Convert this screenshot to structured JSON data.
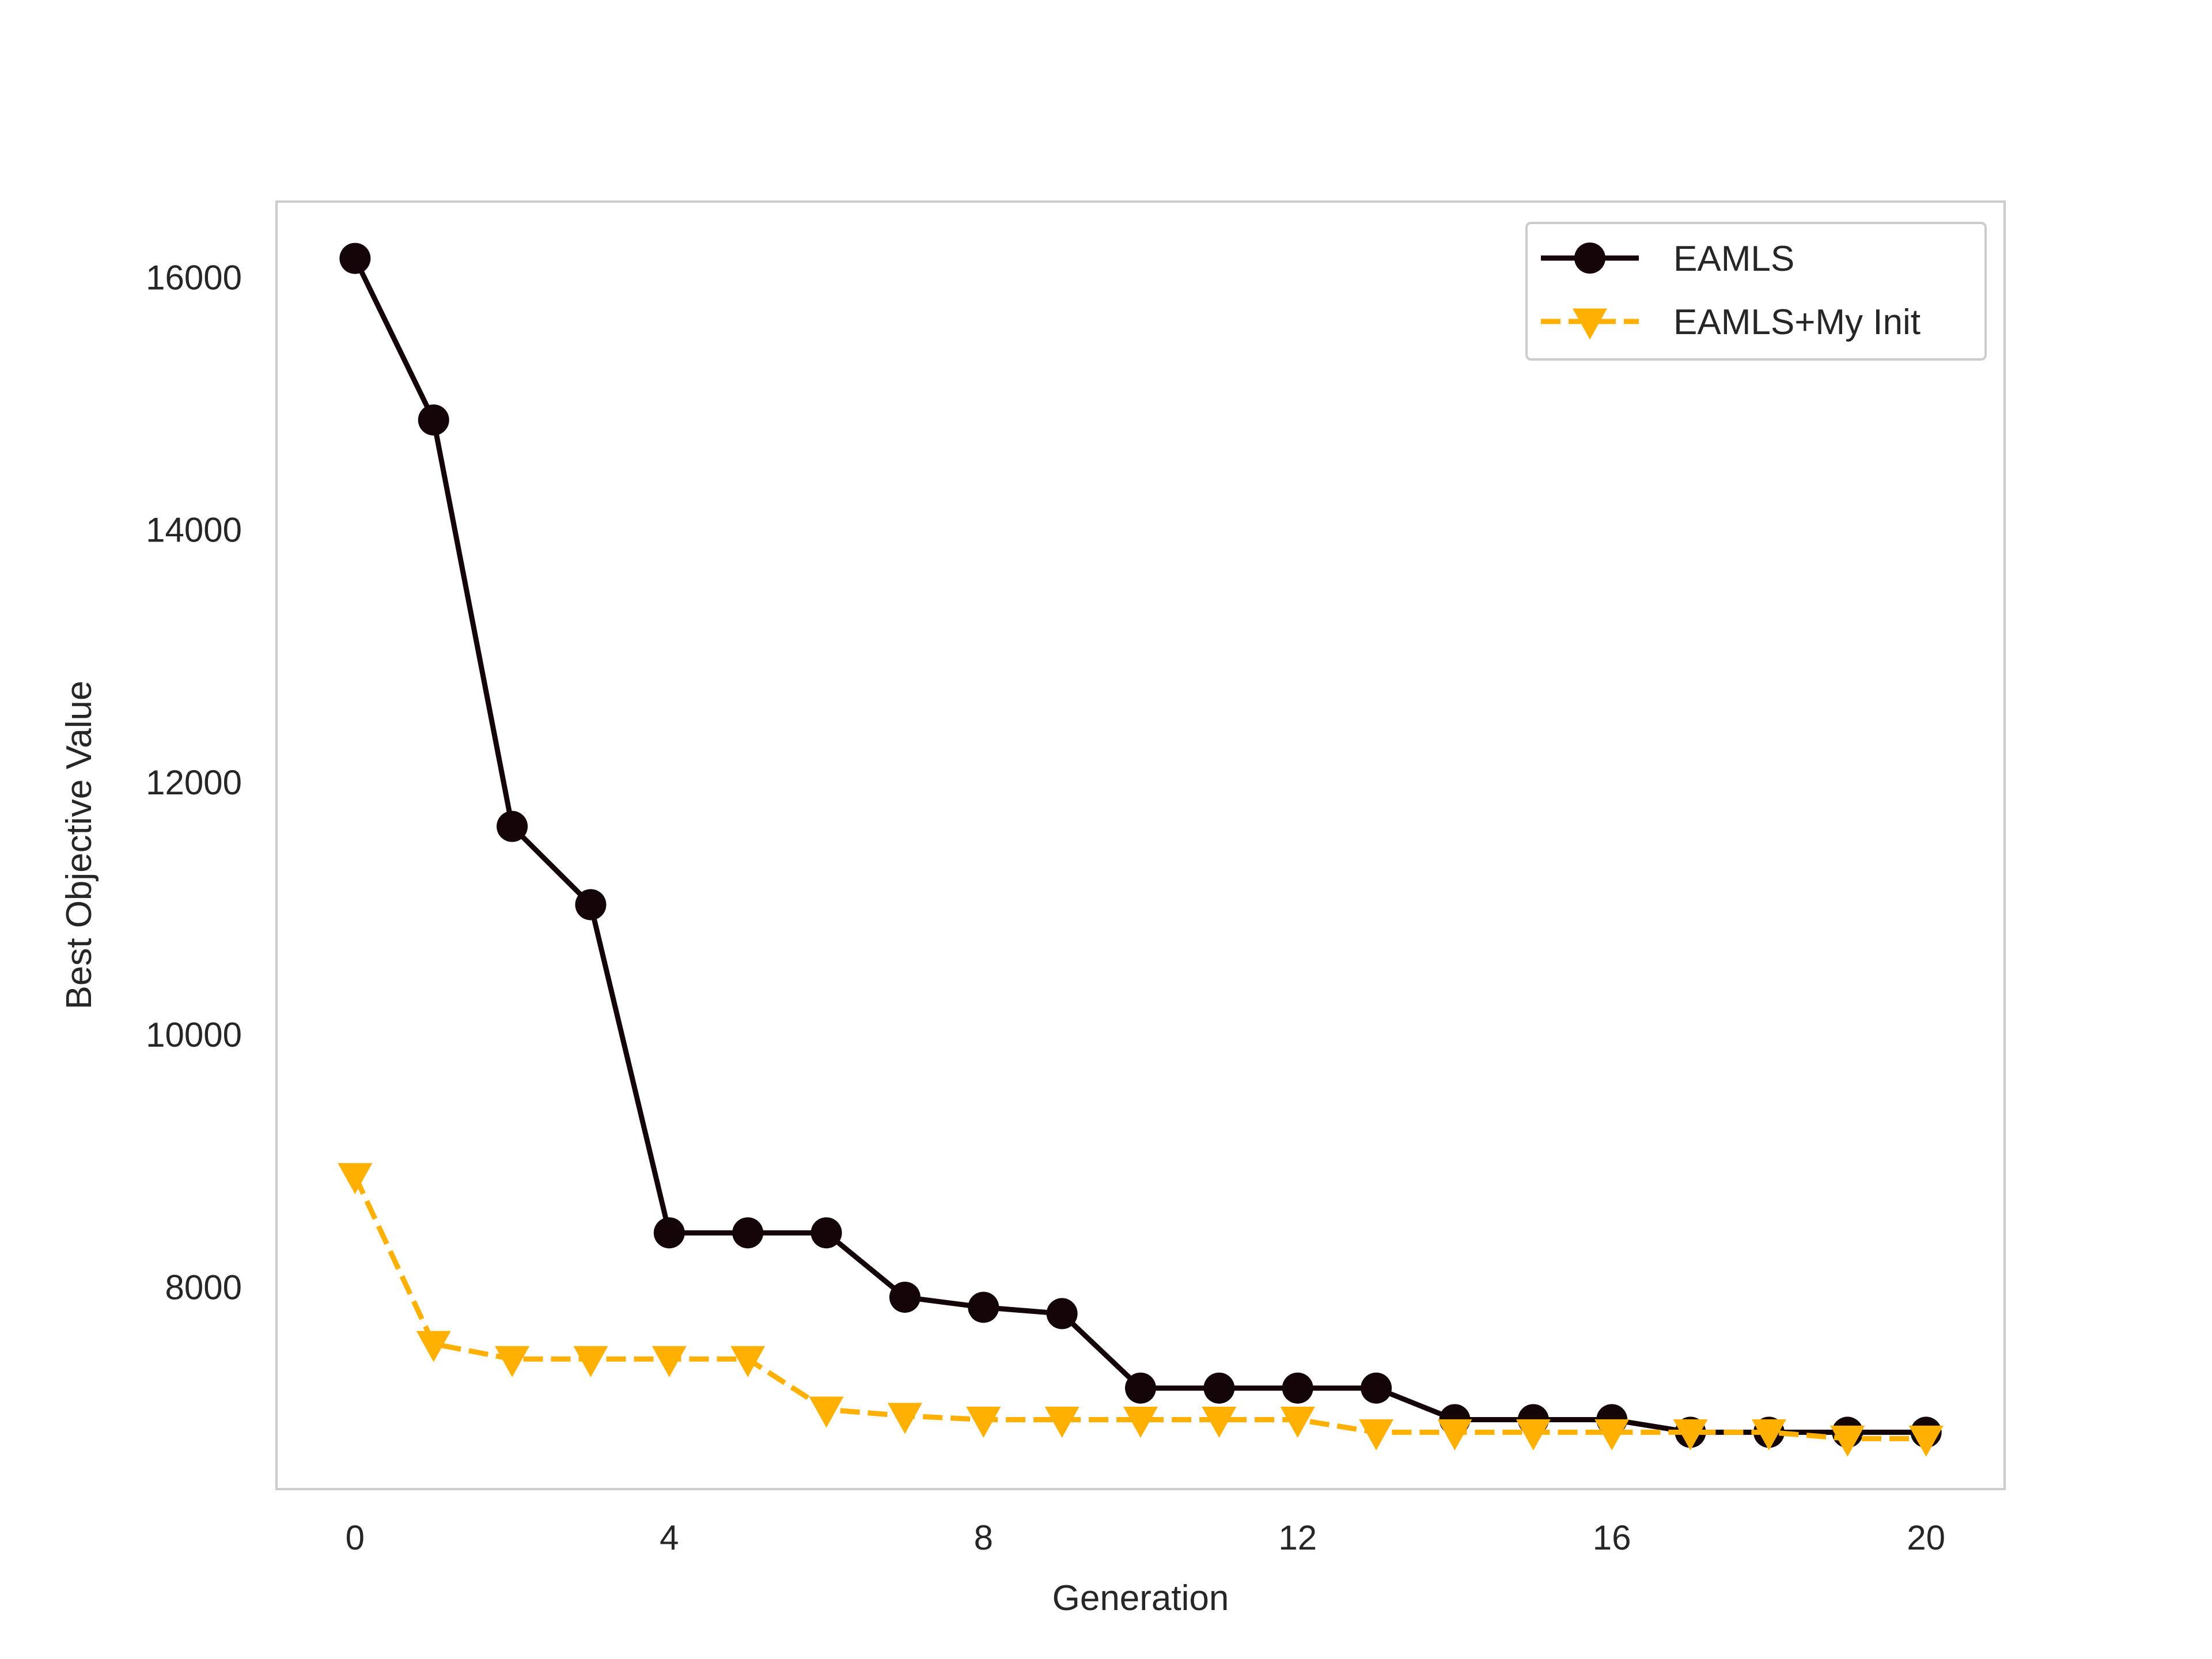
{
  "chart_data": {
    "type": "line",
    "title": "",
    "xlabel": "Generation",
    "ylabel": "Best Objective Value",
    "xlim": [
      -1,
      21
    ],
    "ylim": [
      6400,
      16600
    ],
    "x_ticks": [
      0,
      4,
      8,
      12,
      16,
      20
    ],
    "y_ticks": [
      8000,
      10000,
      12000,
      14000,
      16000
    ],
    "grid": false,
    "legend_position": "top-right",
    "x": [
      0,
      1,
      2,
      3,
      4,
      5,
      6,
      7,
      8,
      9,
      10,
      11,
      12,
      13,
      14,
      15,
      16,
      17,
      18,
      19,
      20
    ],
    "series": [
      {
        "name": "EAMLS",
        "color": "#140608",
        "line_style": "solid",
        "marker": "circle",
        "values": [
          16150,
          14870,
          11650,
          11030,
          8430,
          8430,
          8430,
          7920,
          7840,
          7790,
          7200,
          7200,
          7200,
          7200,
          6950,
          6950,
          6950,
          6850,
          6850,
          6850,
          6850
        ]
      },
      {
        "name": "EAMLS+My Init",
        "color": "#FFB000",
        "line_style": "dashed",
        "marker": "triangle-down",
        "values": [
          8880,
          7550,
          7430,
          7430,
          7430,
          7430,
          7030,
          6980,
          6950,
          6950,
          6950,
          6950,
          6950,
          6850,
          6850,
          6850,
          6850,
          6850,
          6850,
          6800,
          6800
        ]
      }
    ]
  }
}
